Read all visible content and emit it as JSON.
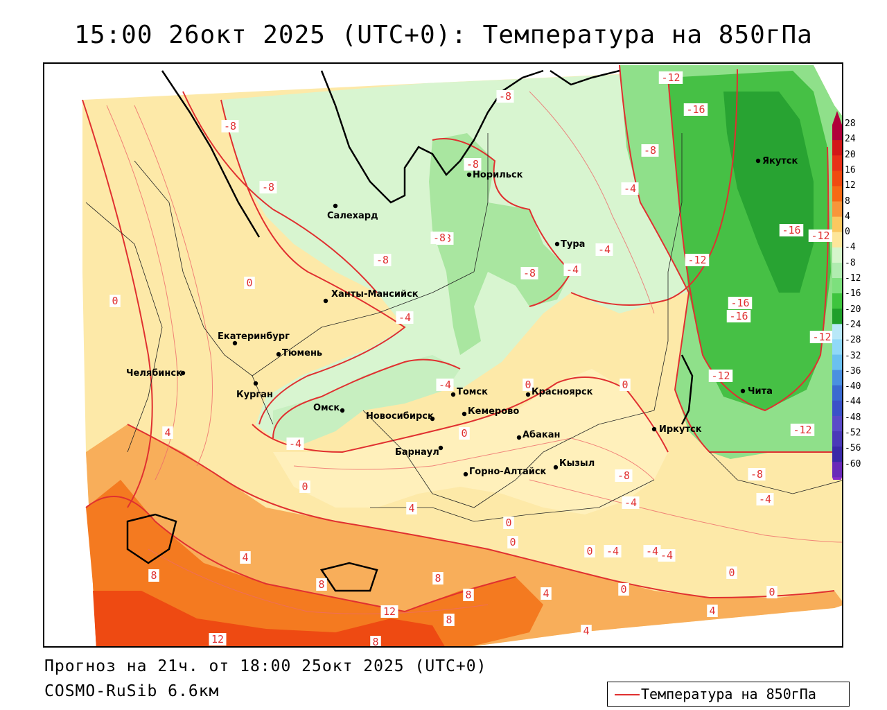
{
  "title": "15:00 26окт 2025 (UTC+0): Температура на 850гПа",
  "footer": {
    "forecast": "Прогноз на 21ч. от 18:00 25окт 2025 (UTC+0)",
    "model": "COSMO-RuSib 6.6км"
  },
  "legend": {
    "label": "Температура на 850гПа",
    "line_color": "#e03030"
  },
  "colorbar": {
    "labels": [
      "28",
      "24",
      "20",
      "16",
      "12",
      "8",
      "4",
      "0",
      "-4",
      "-8",
      "-12",
      "-16",
      "-20",
      "-24",
      "-28",
      "-32",
      "-36",
      "-40",
      "-44",
      "-48",
      "-52",
      "-56",
      "-60"
    ],
    "colors": [
      "#b0003a",
      "#d21818",
      "#e83018",
      "#f04a10",
      "#f66a14",
      "#f8963a",
      "#fbc860",
      "#fde69a",
      "#d6f5cc",
      "#b0ecb0",
      "#7de07d",
      "#3ec43e",
      "#1f9f2a",
      "#b8e8f8",
      "#90d8f8",
      "#6ac0f0",
      "#4a90e0",
      "#3a6ad0",
      "#3a52c8",
      "#5a4ac8",
      "#4a3ab8",
      "#3a2aa8",
      "#6a2ab8"
    ]
  },
  "cities": [
    "Норильск",
    "Салехард",
    "Тура",
    "Якутск",
    "Ханты-Мансийск",
    "Екатеринбург",
    "Тюмень",
    "Челябинск",
    "Курган",
    "Омск",
    "Новосибирск",
    "Томск",
    "Кемерово",
    "Красноярск",
    "Барнаул",
    "Абакан",
    "Горно-Алтайск",
    "Кызыл",
    "Иркутск",
    "Чита"
  ],
  "contour_labels": [
    "-8",
    "-8",
    "-8",
    "-8",
    "-8",
    "-8",
    "-8",
    "-8",
    "-8",
    "-8",
    "-8",
    "-4",
    "-4",
    "-4",
    "-4",
    "-4",
    "-4",
    "-4",
    "-4",
    "-4",
    "-4",
    "-4",
    "0",
    "0",
    "0",
    "0",
    "0",
    "0",
    "0",
    "0",
    "0",
    "0",
    "0",
    "0",
    "4",
    "4",
    "4",
    "4",
    "4",
    "4",
    "8",
    "8",
    "8",
    "8",
    "8",
    "8",
    "12",
    "12",
    "-12",
    "-12",
    "-12",
    "-12",
    "-12",
    "-12",
    "-16",
    "-16",
    "-16",
    "-16"
  ]
}
